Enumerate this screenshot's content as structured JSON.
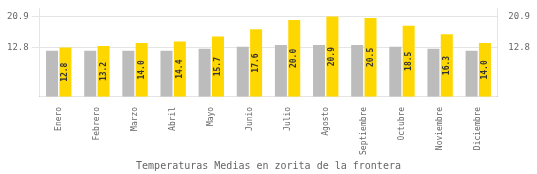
{
  "chart_data": {
    "type": "bar",
    "title": "Temperaturas Medias en zorita de la frontera",
    "categories": [
      "Enero",
      "Febrero",
      "Marzo",
      "Abril",
      "Mayo",
      "Junio",
      "Julio",
      "Agosto",
      "Septiembre",
      "Octubre",
      "Noviembre",
      "Diciembre"
    ],
    "series": [
      {
        "color": "#BCBCBC",
        "values": [
          12.0,
          12.0,
          12.0,
          12.0,
          12.5,
          13.0,
          13.5,
          13.5,
          13.5,
          13.0,
          12.5,
          12.0
        ]
      },
      {
        "color": "#FFD700",
        "values": [
          12.8,
          13.2,
          14.0,
          14.4,
          15.7,
          17.6,
          20.0,
          20.9,
          20.5,
          18.5,
          16.3,
          14.0
        ],
        "data_labels": true,
        "value_labels": [
          "12.8",
          "13.2",
          "14.0",
          "14.4",
          "15.7",
          "17.6",
          "20.0",
          "20.9",
          "20.5",
          "18.5",
          "16.3",
          "14.0"
        ]
      }
    ],
    "ylim": [
      0,
      23.0
    ],
    "yticks": [
      12.8,
      20.9
    ],
    "y2lim": [
      0,
      23.0
    ],
    "y2ticks": [
      12.8,
      20.9
    ],
    "grid": true
  }
}
